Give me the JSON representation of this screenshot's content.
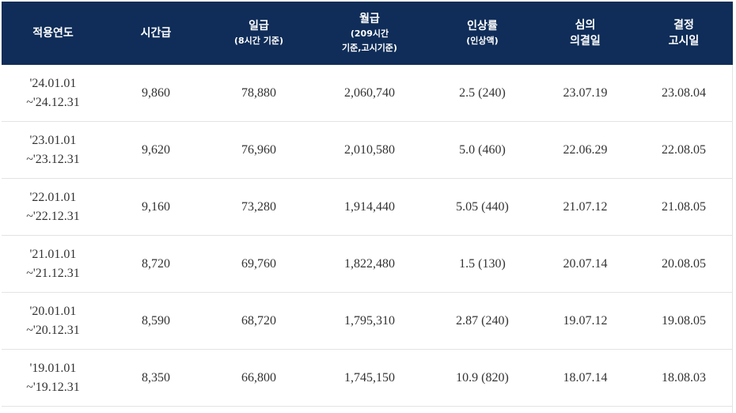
{
  "header": {
    "col1": "적용연도",
    "col2": "시간급",
    "col3": "일급",
    "col3_sub": "(8시간 기준)",
    "col4": "월급",
    "col4_sub1": "(209시간",
    "col4_sub2": "기준,고시기준)",
    "col5": "인상률",
    "col5_sub": "(인상액)",
    "col6_line1": "심의",
    "col6_line2": "의결일",
    "col7_line1": "결정",
    "col7_line2": "고시일"
  },
  "rows": [
    {
      "period_start": "'24.01.01",
      "period_end": "~'24.12.31",
      "hourly": "9,860",
      "daily": "78,880",
      "monthly": "2,060,740",
      "rate": "2.5 (240)",
      "decided": "23.07.19",
      "announced": "23.08.04"
    },
    {
      "period_start": "'23.01.01",
      "period_end": "~'23.12.31",
      "hourly": "9,620",
      "daily": "76,960",
      "monthly": "2,010,580",
      "rate": "5.0 (460)",
      "decided": "22.06.29",
      "announced": "22.08.05"
    },
    {
      "period_start": "'22.01.01",
      "period_end": "~'22.12.31",
      "hourly": "9,160",
      "daily": "73,280",
      "monthly": "1,914,440",
      "rate": "5.05 (440)",
      "decided": "21.07.12",
      "announced": "21.08.05"
    },
    {
      "period_start": "'21.01.01",
      "period_end": "~'21.12.31",
      "hourly": "8,720",
      "daily": "69,760",
      "monthly": "1,822,480",
      "rate": "1.5 (130)",
      "decided": "20.07.14",
      "announced": "20.08.05"
    },
    {
      "period_start": "'20.01.01",
      "period_end": "~'20.12.31",
      "hourly": "8,590",
      "daily": "68,720",
      "monthly": "1,795,310",
      "rate": "2.87 (240)",
      "decided": "19.07.12",
      "announced": "19.08.05"
    },
    {
      "period_start": "'19.01.01",
      "period_end": "~'19.12.31",
      "hourly": "8,350",
      "daily": "66,800",
      "monthly": "1,745,150",
      "rate": "10.9 (820)",
      "decided": "18.07.14",
      "announced": "18.08.03"
    }
  ]
}
